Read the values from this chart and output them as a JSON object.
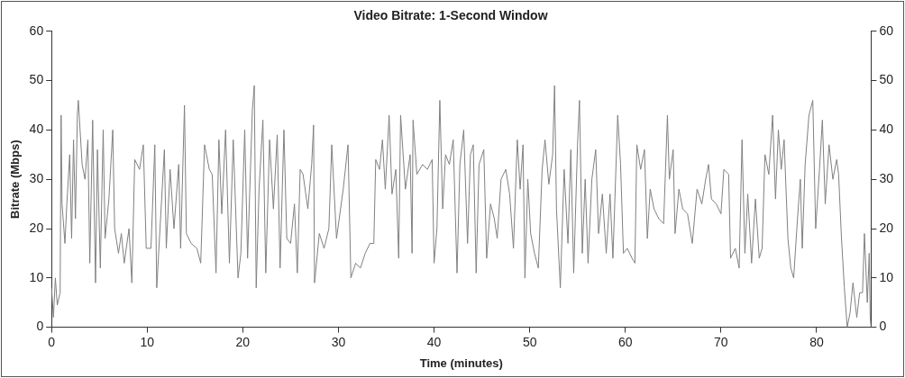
{
  "chart_data": {
    "type": "line",
    "title": "Video Bitrate: 1-Second Window",
    "xlabel": "Time (minutes)",
    "ylabel": "Bitrate (Mbps)",
    "xlim": [
      0,
      85.7
    ],
    "xticks": [
      0,
      10,
      20,
      30,
      40,
      50,
      60,
      70,
      80
    ],
    "ylim": [
      0,
      60
    ],
    "yticks": [
      0,
      10,
      20,
      30,
      40,
      50,
      60
    ],
    "y2lim": [
      0,
      60
    ],
    "y2ticks": [
      0,
      10,
      20,
      30,
      40,
      50,
      60
    ],
    "grid": false,
    "legend": false,
    "marker": "none",
    "line_style": "solid",
    "series": [
      {
        "color": "#808080",
        "x": [
          0,
          0.2,
          0.4,
          0.6,
          0.9,
          1.0,
          1.1,
          1.4,
          1.6,
          1.9,
          2.1,
          2.3,
          2.5,
          2.7,
          2.8,
          3.2,
          3.5,
          3.8,
          4.0,
          4.3,
          4.6,
          4.8,
          5.1,
          5.4,
          5.6,
          6.0,
          6.4,
          6.6,
          7.0,
          7.3,
          7.6,
          8.1,
          8.4,
          8.7,
          9.2,
          9.6,
          9.9,
          10.4,
          10.8,
          11.0,
          11.4,
          11.8,
          12.0,
          12.4,
          12.8,
          13.3,
          13.5,
          13.9,
          14.1,
          14.6,
          15.2,
          15.6,
          16.0,
          16.5,
          16.8,
          17.2,
          17.5,
          17.8,
          18.2,
          18.6,
          19.0,
          19.5,
          19.8,
          20.2,
          20.5,
          21.0,
          21.2,
          21.4,
          21.7,
          22.1,
          22.4,
          22.8,
          23.2,
          23.6,
          23.9,
          24.3,
          24.6,
          25.0,
          25.4,
          25.7,
          26.0,
          26.3,
          26.8,
          27.2,
          27.4,
          27.5,
          28.0,
          28.5,
          29.0,
          29.3,
          29.8,
          30.5,
          31.0,
          31.3,
          31.8,
          32.3,
          32.8,
          33.3,
          33.7,
          33.9,
          34.3,
          34.6,
          34.9,
          35.3,
          35.6,
          36.0,
          36.3,
          36.5,
          37.0,
          37.5,
          37.7,
          37.8,
          38.2,
          38.8,
          39.3,
          39.8,
          40.0,
          40.3,
          40.6,
          40.9,
          41.2,
          41.6,
          42.0,
          42.4,
          42.7,
          43.1,
          43.5,
          43.8,
          44.1,
          44.4,
          44.7,
          45.2,
          45.5,
          45.9,
          46.3,
          46.6,
          47.0,
          47.5,
          47.9,
          48.3,
          48.7,
          49.0,
          49.3,
          49.5,
          49.8,
          50.1,
          50.5,
          50.9,
          51.3,
          51.6,
          52.0,
          52.4,
          52.6,
          52.8,
          53.2,
          53.6,
          54.0,
          54.3,
          54.6,
          55.0,
          55.2,
          55.5,
          55.8,
          56.1,
          56.5,
          56.9,
          57.2,
          57.6,
          58.0,
          58.4,
          58.7,
          59.2,
          59.5,
          59.8,
          60.2,
          60.7,
          61.0,
          61.2,
          61.6,
          62.0,
          62.3,
          62.6,
          63.0,
          63.5,
          64.0,
          64.4,
          64.6,
          65.0,
          65.2,
          65.6,
          66.0,
          66.5,
          67.0,
          67.5,
          68.0,
          68.4,
          68.7,
          69.0,
          69.5,
          70.0,
          70.3,
          70.8,
          71.0,
          71.5,
          71.9,
          72.2,
          72.5,
          72.8,
          73.2,
          73.6,
          74.0,
          74.3,
          74.6,
          75.0,
          75.4,
          75.7,
          76.0,
          76.3,
          76.6,
          77.0,
          77.3,
          77.6,
          78.0,
          78.3,
          78.5,
          78.8,
          79.2,
          79.6,
          79.9,
          80.3,
          80.6,
          80.9,
          81.3,
          81.7,
          82.1,
          82.3,
          82.6,
          82.9,
          83.2,
          83.5,
          83.8,
          84.2,
          84.5,
          84.8,
          85.0,
          85.3,
          85.5,
          85.6,
          85.7
        ],
        "values": [
          8,
          2,
          10,
          4.5,
          7,
          43,
          25,
          17,
          25,
          35,
          18,
          38,
          22,
          43,
          46,
          33,
          30,
          38,
          13,
          42,
          9,
          36,
          12,
          40,
          18,
          26,
          40,
          20,
          15,
          19,
          13,
          20,
          9,
          34,
          32,
          37,
          16,
          16,
          37,
          8,
          22,
          36,
          16,
          32,
          20,
          33,
          16,
          45,
          19,
          17,
          16,
          13,
          37,
          32,
          31,
          11,
          38,
          23,
          40,
          13,
          38,
          10,
          15,
          40,
          14,
          44,
          49,
          8,
          28,
          42,
          11,
          38,
          24,
          39,
          12,
          40,
          18,
          17,
          25,
          11,
          32,
          31,
          24,
          33,
          41,
          9,
          19,
          16,
          20,
          37,
          18,
          28,
          37,
          10,
          13,
          12,
          15,
          17,
          17,
          34,
          32,
          38,
          28,
          43,
          27,
          32,
          14,
          43,
          28,
          35,
          15,
          42,
          31,
          33,
          32,
          34,
          13,
          20,
          46,
          24,
          35,
          33,
          38,
          11,
          33,
          40,
          17,
          35,
          37,
          11,
          33,
          36,
          14,
          25,
          22,
          18,
          30,
          32,
          27,
          16,
          38,
          28,
          37,
          10,
          30,
          19,
          15,
          12,
          32,
          38,
          29,
          35,
          49,
          24,
          8,
          32,
          17,
          36,
          11,
          37,
          46,
          15,
          30,
          13,
          30,
          36,
          19,
          27,
          15,
          27,
          14,
          43,
          33,
          15,
          16,
          14,
          13,
          37,
          32,
          36,
          18,
          28,
          24,
          22,
          21,
          43,
          30,
          36,
          19,
          28,
          24,
          23,
          17,
          28,
          25,
          30,
          33,
          26,
          25,
          23,
          32,
          31,
          14,
          16,
          12,
          38,
          15,
          27,
          13,
          26,
          14,
          16,
          35,
          31,
          43,
          26,
          40,
          32,
          38,
          18,
          12,
          10,
          22,
          30,
          16,
          33,
          43,
          46,
          20,
          32,
          42,
          25,
          37,
          30,
          34,
          31,
          18,
          8,
          0,
          3,
          9,
          2,
          7,
          7,
          19,
          5,
          15,
          2,
          0
        ]
      }
    ]
  }
}
